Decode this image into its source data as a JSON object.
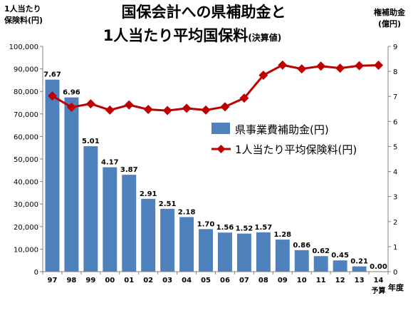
{
  "chart_data": {
    "type": "bar",
    "title": [
      "国保会計への県補助金と",
      "1人当たり平均国保料"
    ],
    "title_suffix": "(決算値)",
    "ylabel_left": [
      "1人当たり",
      "保険料(円)"
    ],
    "ylabel_right": [
      "権補助金",
      "(億円)"
    ],
    "xlabel": "年度",
    "categories": [
      "97",
      "98",
      "99",
      "00",
      "01",
      "02",
      "03",
      "04",
      "05",
      "06",
      "07",
      "08",
      "09",
      "10",
      "11",
      "12",
      "13",
      "14"
    ],
    "category_sublabels": {
      "14": "予算"
    },
    "y_left_ticks": [
      "0",
      "10,000",
      "20,000",
      "30,000",
      "40,000",
      "50,000",
      "60,000",
      "70,000",
      "80,000",
      "90,000",
      "100,000"
    ],
    "y_right_ticks": [
      "0",
      "1",
      "2",
      "3",
      "4",
      "5",
      "6",
      "7",
      "8",
      "9"
    ],
    "ylim_left": [
      0,
      100000
    ],
    "ylim_right": [
      0,
      9
    ],
    "grid": false,
    "legend_position": "center-right",
    "series": [
      {
        "name": "県事業費補助金(円)",
        "type": "bar",
        "axis": "right",
        "color": "#4f81bd",
        "values": [
          7.67,
          6.96,
          5.01,
          4.17,
          3.87,
          2.91,
          2.51,
          2.18,
          1.7,
          1.56,
          1.52,
          1.57,
          1.28,
          0.86,
          0.62,
          0.45,
          0.21,
          0.0
        ],
        "labels": [
          "7.67",
          "6.96",
          "5.01",
          "4.17",
          "3.87",
          "2.91",
          "2.51",
          "2.18",
          "1.70",
          "1.56",
          "1.52",
          "1.57",
          "1.28",
          "0.86",
          "0.62",
          "0.45",
          "0.21",
          "0.00"
        ]
      },
      {
        "name": "1人当たり平均保険料(円)",
        "type": "line",
        "axis": "left",
        "color": "#c00000",
        "marker": "diamond",
        "values": [
          78000,
          73000,
          74500,
          71700,
          74000,
          72000,
          71500,
          72500,
          71700,
          73200,
          77000,
          87200,
          91700,
          90000,
          91200,
          90300,
          91400,
          91600
        ]
      }
    ]
  }
}
